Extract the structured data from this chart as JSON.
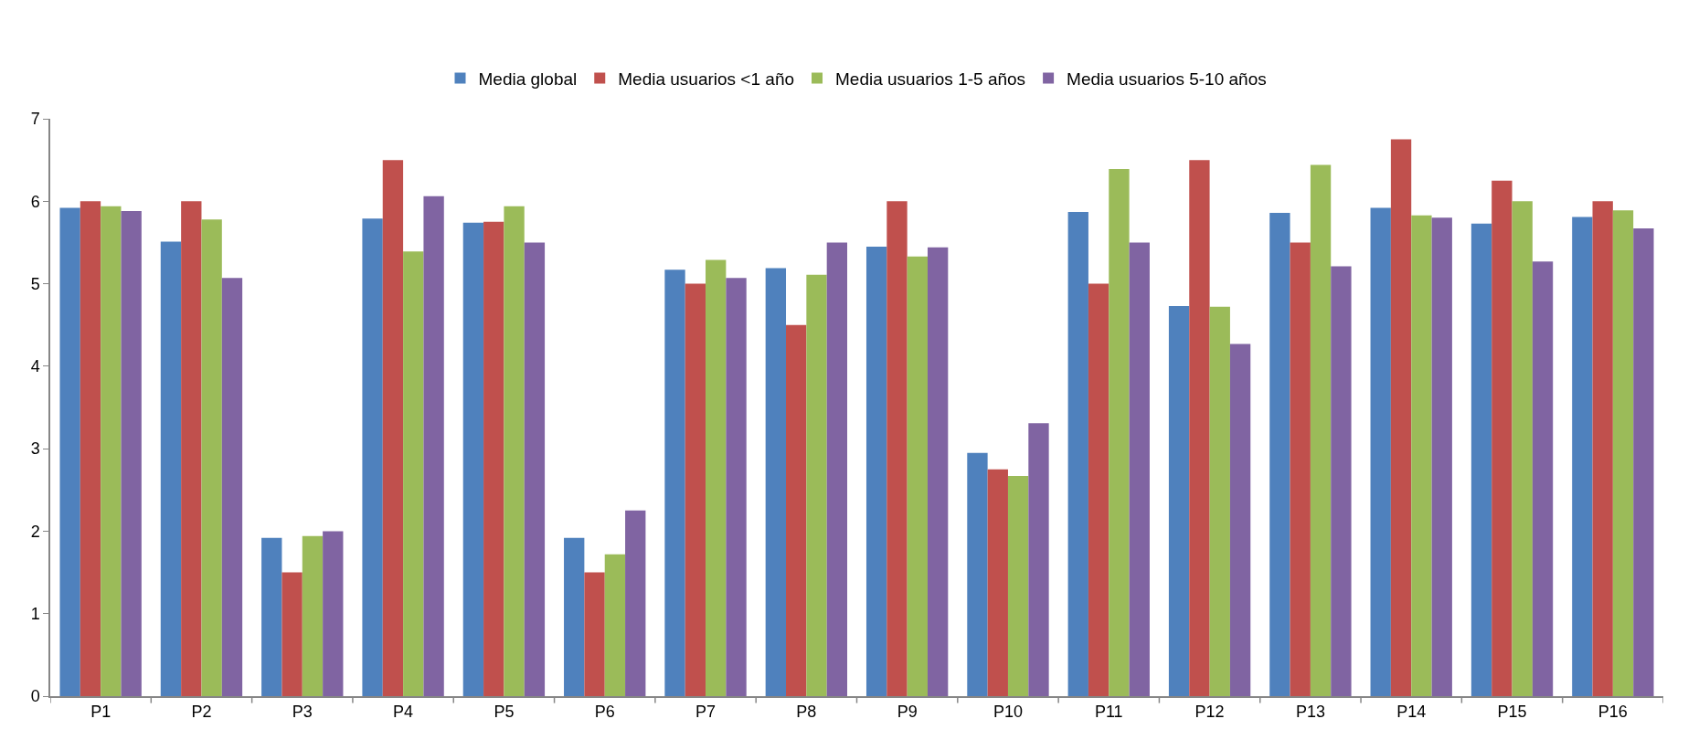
{
  "chart_data": {
    "type": "bar",
    "categories": [
      "P1",
      "P2",
      "P3",
      "P4",
      "P5",
      "P6",
      "P7",
      "P8",
      "P9",
      "P10",
      "P11",
      "P12",
      "P13",
      "P14",
      "P15",
      "P16"
    ],
    "series": [
      {
        "name": "Media global",
        "color": "#4f81bd",
        "values": [
          5.92,
          5.51,
          1.92,
          5.79,
          5.74,
          1.92,
          5.17,
          5.19,
          5.45,
          2.95,
          5.87,
          4.73,
          5.86,
          5.92,
          5.73,
          5.81
        ]
      },
      {
        "name": "Media usuarios <1 año",
        "color": "#c0504d",
        "values": [
          6.0,
          6.0,
          1.5,
          6.5,
          5.75,
          1.5,
          5.0,
          4.5,
          6.0,
          2.75,
          5.0,
          6.5,
          5.5,
          6.75,
          6.25,
          6.0
        ]
      },
      {
        "name": "Media usuarios 1-5 años",
        "color": "#9bbb59",
        "values": [
          5.94,
          5.78,
          1.94,
          5.39,
          5.94,
          1.72,
          5.29,
          5.11,
          5.33,
          2.67,
          6.39,
          4.72,
          6.44,
          5.83,
          6.0,
          5.89
        ]
      },
      {
        "name": "Media usuarios 5-10 años",
        "color": "#8064a2",
        "values": [
          5.88,
          5.07,
          2.0,
          6.06,
          5.5,
          2.25,
          5.07,
          5.5,
          5.44,
          3.31,
          5.5,
          4.27,
          5.21,
          5.8,
          5.27,
          5.67
        ]
      }
    ],
    "ylim": [
      0,
      7
    ],
    "yticks": [
      0,
      1,
      2,
      3,
      4,
      5,
      6,
      7
    ],
    "legend": "top"
  }
}
